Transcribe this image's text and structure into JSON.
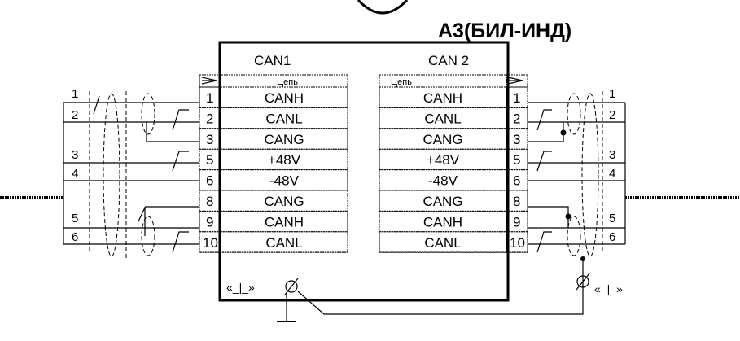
{
  "title": "А3(БИЛ-ИНД)",
  "left_connector": {
    "name": "CAN1",
    "header": "Цепь",
    "rows": [
      {
        "pin": "1",
        "signal": "CANH"
      },
      {
        "pin": "2",
        "signal": "CANL"
      },
      {
        "pin": "3",
        "signal": "CANG"
      },
      {
        "pin": "5",
        "signal": "+48V"
      },
      {
        "pin": "6",
        "signal": "-48V"
      },
      {
        "pin": "8",
        "signal": "CANG"
      },
      {
        "pin": "9",
        "signal": "CANH"
      },
      {
        "pin": "10",
        "signal": "CANL"
      }
    ]
  },
  "right_connector": {
    "name": "CAN 2",
    "header": "Цепь",
    "rows": [
      {
        "pin": "1",
        "signal": "CANH"
      },
      {
        "pin": "2",
        "signal": "CANL"
      },
      {
        "pin": "3",
        "signal": "CANG"
      },
      {
        "pin": "5",
        "signal": "+48V"
      },
      {
        "pin": "6",
        "signal": "-48V"
      },
      {
        "pin": "8",
        "signal": "CANG"
      },
      {
        "pin": "9",
        "signal": "CANH"
      },
      {
        "pin": "10",
        "signal": "CANL"
      }
    ]
  },
  "left_wires": [
    "1",
    "2",
    "3",
    "4",
    "5",
    "6"
  ],
  "right_wires": [
    "1",
    "2",
    "3",
    "4",
    "5",
    "6"
  ],
  "ground_left": "«_|_»",
  "ground_right": "«_|_»"
}
